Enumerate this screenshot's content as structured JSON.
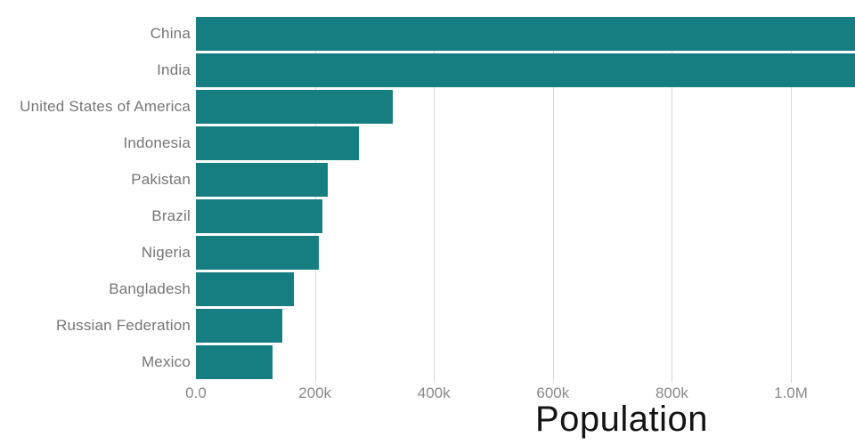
{
  "chart_data": {
    "type": "bar",
    "orientation": "horizontal",
    "title": "Population",
    "categories": [
      "China",
      "India",
      "United States of America",
      "Indonesia",
      "Pakistan",
      "Brazil",
      "Nigeria",
      "Bangladesh",
      "Russian Federation",
      "Mexico"
    ],
    "values": [
      1439324,
      1380004,
      331003,
      273524,
      220892,
      212559,
      206140,
      164689,
      145934,
      128933
    ],
    "x_ticks": [
      {
        "label": "0.0",
        "value": 0
      },
      {
        "label": "200k",
        "value": 200000
      },
      {
        "label": "400k",
        "value": 400000
      },
      {
        "label": "600k",
        "value": 600000
      },
      {
        "label": "800k",
        "value": 800000
      },
      {
        "label": "1.0M",
        "value": 1000000
      }
    ],
    "xlim": [
      0,
      1107800
    ],
    "grid": true,
    "legend": "none"
  },
  "colors": {
    "bar": "#167e81",
    "grid_line": "#d9d9d9",
    "category_label": "#757575",
    "tick_label": "#8a8a8a",
    "title": "#141414",
    "background": "#ffffff"
  }
}
